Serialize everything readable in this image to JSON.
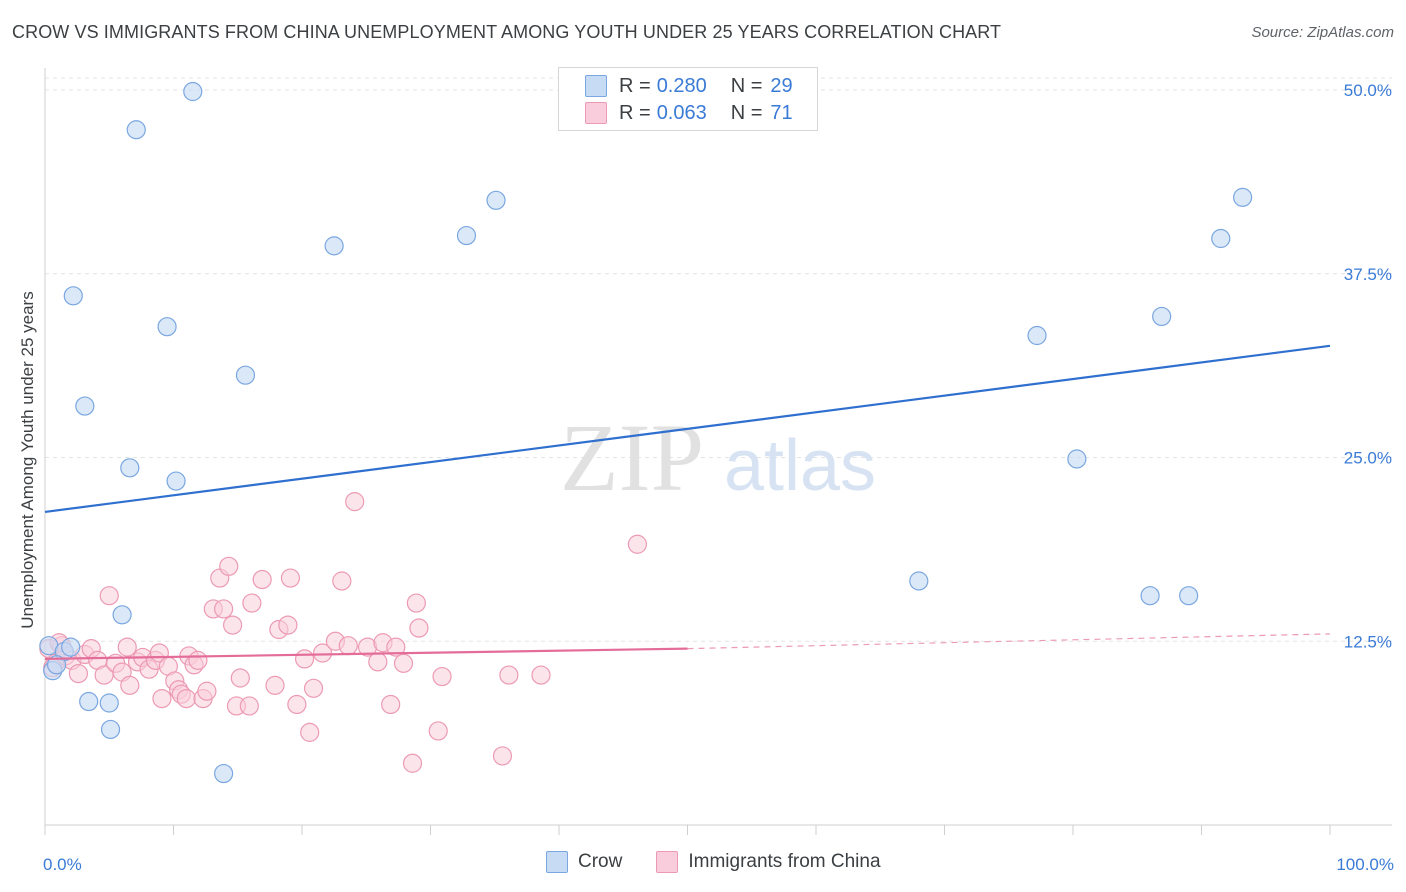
{
  "title": "CROW VS IMMIGRANTS FROM CHINA UNEMPLOYMENT AMONG YOUTH UNDER 25 YEARS CORRELATION CHART",
  "source": "Source: ZipAtlas.com",
  "watermark": {
    "zip": "ZIP",
    "atlas": "atlas"
  },
  "legend_top": [
    {
      "r_label": "R =",
      "r_value": "0.280",
      "n_label": "N =",
      "n_value": "29"
    },
    {
      "r_label": "R =",
      "r_value": "0.063",
      "n_label": "N =",
      "n_value": "71"
    }
  ],
  "legend_bottom": [
    {
      "label": "Crow"
    },
    {
      "label": "Immigrants from China"
    }
  ],
  "chart_data": {
    "type": "scatter",
    "title": "CROW VS IMMIGRANTS FROM CHINA UNEMPLOYMENT AMONG YOUTH UNDER 25 YEARS CORRELATION CHART",
    "xlabel": "",
    "ylabel": "Unemployment Among Youth under 25 years",
    "xlim": [
      0,
      100
    ],
    "ylim": [
      0,
      51.5
    ],
    "x_tick_labels": [
      "0.0%",
      "100.0%"
    ],
    "y_ticks": [
      12.5,
      25.0,
      37.5,
      50.0
    ],
    "y_tick_labels": [
      "12.5%",
      "25.0%",
      "37.5%",
      "50.0%"
    ],
    "grid": true,
    "legend_position": "top-center",
    "colors": {
      "crow_fill": "#c7dbf4",
      "crow_stroke": "#7aa7e0",
      "crow_line": "#2f6fcf",
      "china_fill": "#f9cddb",
      "china_stroke": "#ec9ab4",
      "china_line": "#e46c98",
      "tick_label": "#3a7bd5",
      "grid": "#e3e3e3"
    },
    "series": [
      {
        "name": "Crow",
        "r": 0.28,
        "n": 29,
        "trend": {
          "x": [
            0,
            100
          ],
          "y": [
            21.3,
            32.6
          ]
        },
        "points": [
          [
            0.3,
            12.2
          ],
          [
            0.6,
            10.5
          ],
          [
            1.5,
            11.8
          ],
          [
            2.0,
            12.1
          ],
          [
            2.2,
            36.0
          ],
          [
            3.1,
            28.5
          ],
          [
            3.4,
            8.4
          ],
          [
            5.0,
            8.3
          ],
          [
            5.1,
            6.5
          ],
          [
            6.0,
            14.3
          ],
          [
            6.6,
            24.3
          ],
          [
            7.1,
            47.3
          ],
          [
            9.5,
            33.9
          ],
          [
            10.2,
            23.4
          ],
          [
            11.5,
            49.9
          ],
          [
            13.9,
            3.5
          ],
          [
            15.6,
            30.6
          ],
          [
            22.5,
            39.4
          ],
          [
            32.8,
            40.1
          ],
          [
            35.1,
            42.5
          ],
          [
            68.0,
            16.6
          ],
          [
            77.2,
            33.3
          ],
          [
            80.3,
            24.9
          ],
          [
            86.0,
            15.6
          ],
          [
            86.9,
            34.6
          ],
          [
            89.0,
            15.6
          ],
          [
            91.5,
            39.9
          ],
          [
            93.2,
            42.7
          ],
          [
            0.9,
            10.9
          ]
        ]
      },
      {
        "name": "Immigrants from China",
        "r": 0.063,
        "n": 71,
        "trend": {
          "x": [
            0,
            50
          ],
          "y": [
            11.3,
            12.0
          ]
        },
        "trend_dashed": {
          "x": [
            50,
            100
          ],
          "y": [
            12.0,
            13.0
          ]
        },
        "points": [
          [
            0.3,
            12.0
          ],
          [
            0.8,
            11.0
          ],
          [
            1.3,
            12.2
          ],
          [
            1.6,
            11.5
          ],
          [
            2.1,
            11.2
          ],
          [
            2.6,
            10.3
          ],
          [
            3.1,
            11.6
          ],
          [
            3.6,
            12.0
          ],
          [
            4.1,
            11.2
          ],
          [
            4.6,
            10.2
          ],
          [
            5.0,
            15.6
          ],
          [
            5.5,
            11.0
          ],
          [
            6.0,
            10.4
          ],
          [
            6.4,
            12.1
          ],
          [
            6.6,
            9.5
          ],
          [
            7.2,
            11.1
          ],
          [
            7.6,
            11.4
          ],
          [
            8.1,
            10.6
          ],
          [
            8.6,
            11.2
          ],
          [
            8.9,
            11.7
          ],
          [
            9.1,
            8.6
          ],
          [
            9.6,
            10.8
          ],
          [
            10.1,
            9.8
          ],
          [
            10.4,
            9.2
          ],
          [
            10.6,
            8.9
          ],
          [
            11.0,
            8.6
          ],
          [
            11.2,
            11.5
          ],
          [
            11.6,
            10.9
          ],
          [
            11.9,
            11.2
          ],
          [
            12.3,
            8.6
          ],
          [
            12.6,
            9.1
          ],
          [
            13.1,
            14.7
          ],
          [
            13.6,
            16.8
          ],
          [
            13.9,
            14.7
          ],
          [
            14.3,
            17.6
          ],
          [
            14.6,
            13.6
          ],
          [
            14.9,
            8.1
          ],
          [
            15.2,
            10.0
          ],
          [
            15.9,
            8.1
          ],
          [
            16.1,
            15.1
          ],
          [
            16.9,
            16.7
          ],
          [
            17.9,
            9.5
          ],
          [
            18.2,
            13.3
          ],
          [
            18.9,
            13.6
          ],
          [
            19.1,
            16.8
          ],
          [
            19.6,
            8.2
          ],
          [
            20.2,
            11.3
          ],
          [
            20.6,
            6.3
          ],
          [
            20.9,
            9.3
          ],
          [
            21.6,
            11.7
          ],
          [
            22.6,
            12.5
          ],
          [
            23.1,
            16.6
          ],
          [
            23.6,
            12.2
          ],
          [
            24.1,
            22.0
          ],
          [
            25.1,
            12.1
          ],
          [
            25.9,
            11.1
          ],
          [
            26.3,
            12.4
          ],
          [
            26.9,
            8.2
          ],
          [
            27.3,
            12.1
          ],
          [
            27.9,
            11.0
          ],
          [
            28.6,
            4.2
          ],
          [
            28.9,
            15.1
          ],
          [
            29.1,
            13.4
          ],
          [
            30.6,
            6.4
          ],
          [
            30.9,
            10.1
          ],
          [
            35.6,
            4.7
          ],
          [
            36.1,
            10.2
          ],
          [
            38.6,
            10.2
          ],
          [
            46.1,
            19.1
          ],
          [
            0.6,
            10.7
          ],
          [
            1.1,
            12.4
          ]
        ]
      }
    ]
  }
}
